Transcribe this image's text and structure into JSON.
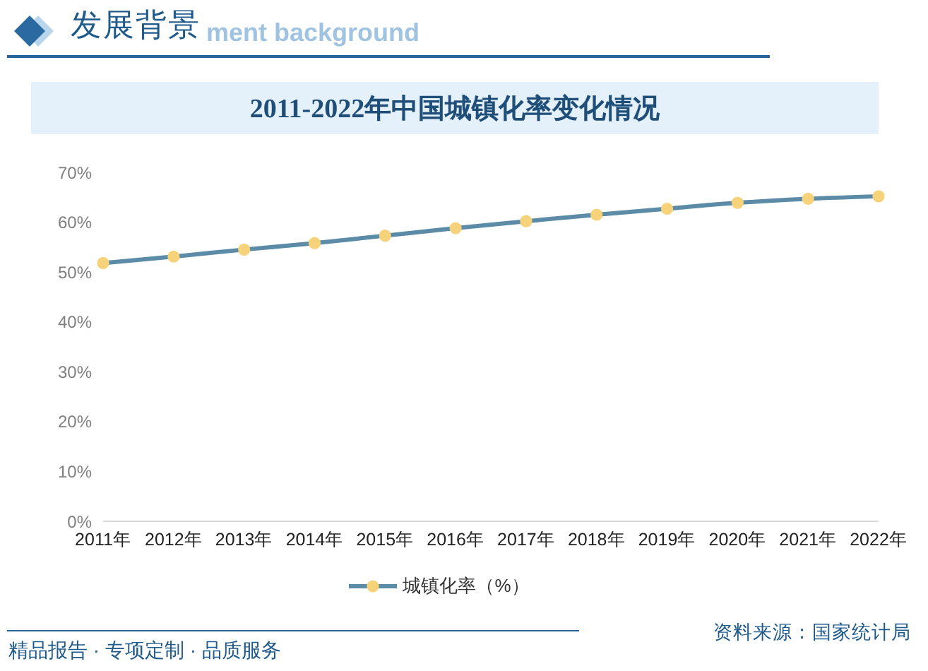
{
  "chart_data": {
    "type": "line",
    "title": "2011-2022年中国城镇化率变化情况",
    "categories": [
      "2011年",
      "2012年",
      "2013年",
      "2014年",
      "2015年",
      "2016年",
      "2017年",
      "2018年",
      "2019年",
      "2020年",
      "2021年",
      "2022年"
    ],
    "series": [
      {
        "name": "城镇化率（%）",
        "color": "#5b8ba6",
        "values": [
          51.8,
          53.1,
          54.5,
          55.8,
          57.3,
          58.8,
          60.2,
          61.5,
          62.7,
          63.9,
          64.7,
          65.2
        ]
      }
    ],
    "ylim": [
      0,
      70
    ],
    "yticks": [
      {
        "value": 0,
        "label": "0%"
      },
      {
        "value": 10,
        "label": "10%"
      },
      {
        "value": 20,
        "label": "20%"
      },
      {
        "value": 30,
        "label": "30%"
      },
      {
        "value": 40,
        "label": "40%"
      },
      {
        "value": 50,
        "label": "50%"
      },
      {
        "value": 60,
        "label": "60%"
      },
      {
        "value": 70,
        "label": "70%"
      }
    ],
    "legend": "bottom",
    "marker": "circle",
    "line_style": "solid",
    "annotations": [
      "发展背景",
      "ment background",
      "精品报告 · 专项定制 · 品质服务",
      "资料来源：国家统计局"
    ]
  }
}
